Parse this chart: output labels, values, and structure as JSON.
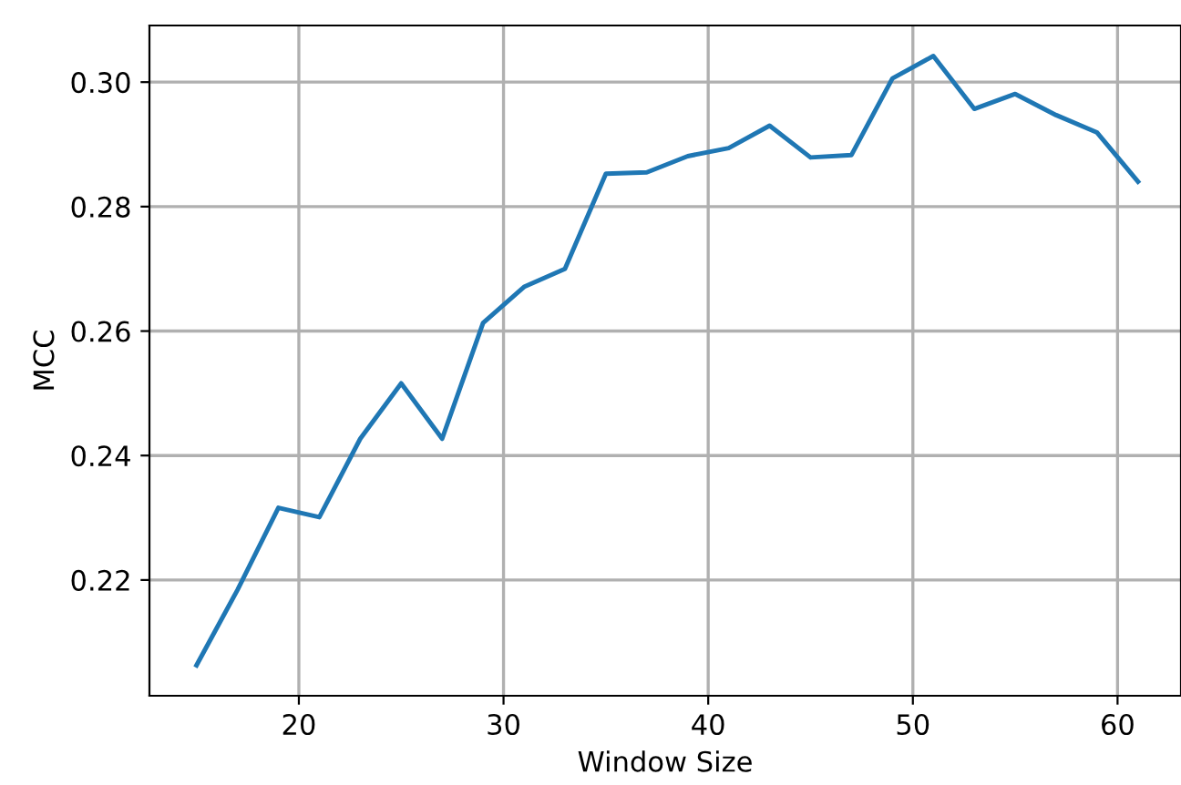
{
  "chart_data": {
    "type": "line",
    "xlabel": "Window Size",
    "ylabel": "MCC",
    "x": [
      15,
      17,
      19,
      21,
      23,
      25,
      27,
      29,
      31,
      33,
      35,
      37,
      39,
      41,
      43,
      45,
      47,
      49,
      51,
      53,
      55,
      57,
      59,
      61
    ],
    "series": [
      {
        "color": "#1f77b4",
        "values": [
          0.2063,
          0.2184,
          0.2316,
          0.2301,
          0.2427,
          0.2516,
          0.2427,
          0.2613,
          0.2671,
          0.27,
          0.2853,
          0.2855,
          0.2881,
          0.2894,
          0.293,
          0.2879,
          0.2883,
          0.3006,
          0.3042,
          0.2957,
          0.2981,
          0.2947,
          0.2919,
          0.284
        ]
      }
    ],
    "xlim": [
      12.7,
      63.1
    ],
    "ylim": [
      0.2014,
      0.3091
    ],
    "xticks": [
      20,
      30,
      40,
      50,
      60
    ],
    "yticks": [
      {
        "value": 0.22,
        "label": "0.22"
      },
      {
        "value": 0.24,
        "label": "0.24"
      },
      {
        "value": 0.26,
        "label": "0.26"
      },
      {
        "value": 0.28,
        "label": "0.28"
      },
      {
        "value": 0.3,
        "label": "0.30"
      }
    ],
    "grid": true
  }
}
